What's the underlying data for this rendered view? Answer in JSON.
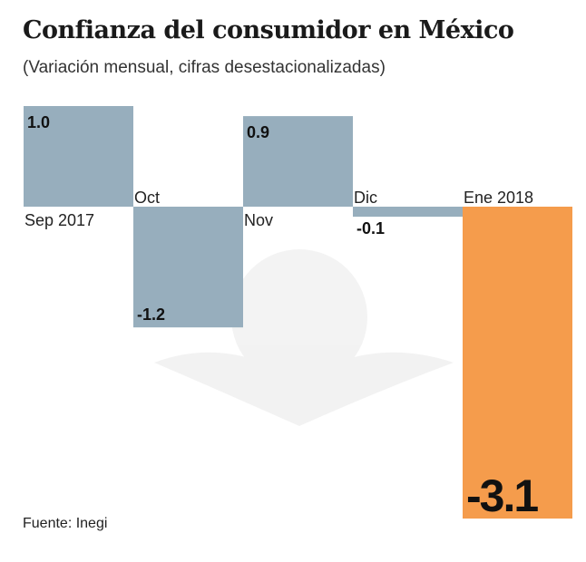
{
  "chart_data": {
    "type": "bar",
    "title": "Confianza del consumidor en México",
    "subtitle": "(Variación mensual, cifras desestacionalizadas)",
    "categories": [
      "Sep 2017",
      "Oct",
      "Nov",
      "Dic",
      "Ene 2018"
    ],
    "values": [
      1.0,
      -1.2,
      0.9,
      -0.1,
      -3.1
    ],
    "value_labels": [
      "1.0",
      "-1.2",
      "0.9",
      "-0.1",
      "-3.1"
    ],
    "highlight_index": 4,
    "colors": {
      "default": "#97aebd",
      "highlight": "#f59c4c"
    },
    "grid": false,
    "source": "Fuente: Inegi"
  }
}
